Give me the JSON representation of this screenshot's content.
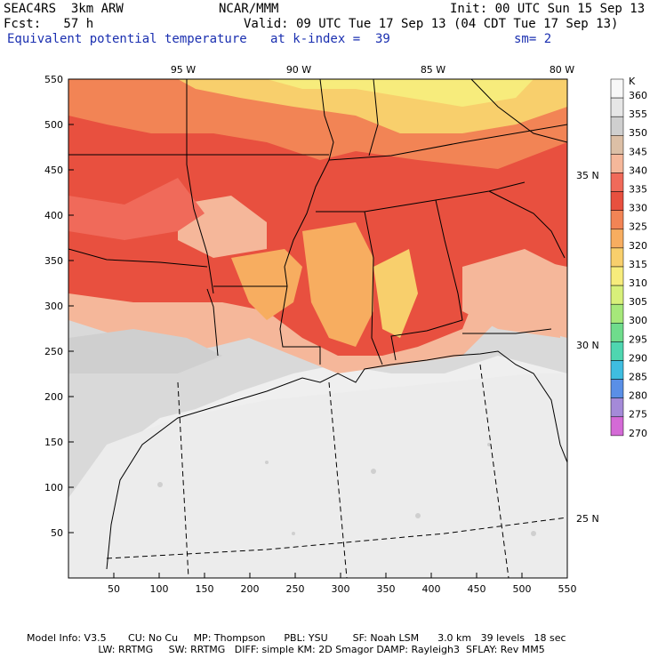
{
  "header": {
    "model": "SEAC4RS  3km ARW",
    "org": "NCAR/MMM",
    "init": "Init: 00 UTC Sun 15 Sep 13",
    "fcst": "Fcst:   57 h",
    "valid": "Valid: 09 UTC Tue 17 Sep 13 (04 CDT Tue 17 Sep 13)",
    "field": "Equivalent potential temperature",
    "level": "at k-index =  39",
    "smooth": "sm= 2"
  },
  "axes": {
    "x_ticks": [
      "50",
      "100",
      "150",
      "200",
      "250",
      "300",
      "350",
      "400",
      "450",
      "500",
      "550"
    ],
    "y_ticks": [
      "550",
      "500",
      "450",
      "400",
      "350",
      "300",
      "250",
      "200",
      "150",
      "100",
      "50"
    ],
    "lon_labels": [
      "95 W",
      "90 W",
      "85 W",
      "80 W"
    ],
    "lat_labels": [
      "35 N",
      "30 N",
      "25 N"
    ]
  },
  "colorbar": {
    "unit": "K",
    "levels": [
      {
        "label": "360",
        "color": "#f8f8f8"
      },
      {
        "label": "355",
        "color": "#e6e6e6"
      },
      {
        "label": "350",
        "color": "#cfcfcf"
      },
      {
        "label": "345",
        "color": "#dcbfa6"
      },
      {
        "label": "340",
        "color": "#f5b79a"
      },
      {
        "label": "335",
        "color": "#f06a5a"
      },
      {
        "label": "330",
        "color": "#e8503f"
      },
      {
        "label": "325",
        "color": "#f28455"
      },
      {
        "label": "320",
        "color": "#f7ad60"
      },
      {
        "label": "315",
        "color": "#f8cf6c"
      },
      {
        "label": "310",
        "color": "#f7ec7c"
      },
      {
        "label": "305",
        "color": "#d8f07a"
      },
      {
        "label": "300",
        "color": "#a6e87a"
      },
      {
        "label": "295",
        "color": "#6fdc8c"
      },
      {
        "label": "290",
        "color": "#4fd6b0"
      },
      {
        "label": "285",
        "color": "#3fbde0"
      },
      {
        "label": "280",
        "color": "#5a8fe6"
      },
      {
        "label": "275",
        "color": "#a48ad8"
      },
      {
        "label": "270",
        "color": "#d46ad6"
      }
    ]
  },
  "footer": {
    "line1": "Model Info: V3.5       CU: No Cu     MP: Thompson      PBL: YSU        SF: Noah LSM      3.0 km   39 levels   18 sec",
    "line2": "                       LW: RRTMG     SW: RRTMG   DIFF: simple KM: 2D Smagor DAMP: Rayleigh3  SFLAY: Rev MM5"
  }
}
